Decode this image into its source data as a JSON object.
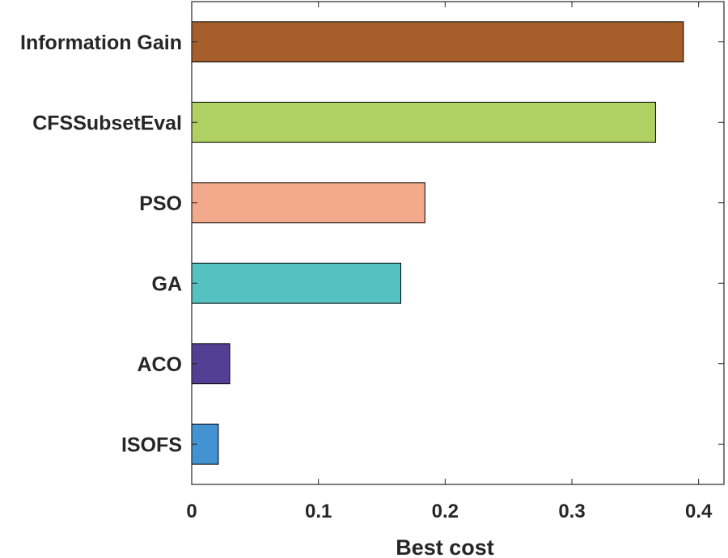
{
  "chart_data": {
    "type": "bar",
    "orientation": "horizontal",
    "categories": [
      "Information Gain",
      "CFSSubsetEval",
      "PSO",
      "GA",
      "ACO",
      "ISOFS"
    ],
    "values": [
      0.388,
      0.366,
      0.184,
      0.165,
      0.03,
      0.021
    ],
    "colors": [
      "#a65e2a",
      "#afd062",
      "#f3a98b",
      "#55c1c0",
      "#523e92",
      "#4393d3"
    ],
    "title": "",
    "xlabel": "Best cost",
    "ylabel": "",
    "xlim": [
      0,
      0.42
    ],
    "xticks": [
      0,
      0.1,
      0.2,
      0.3,
      0.4
    ],
    "xtick_labels": [
      "0",
      "0.1",
      "0.2",
      "0.3",
      "0.4"
    ],
    "grid": false,
    "legend": "none"
  }
}
